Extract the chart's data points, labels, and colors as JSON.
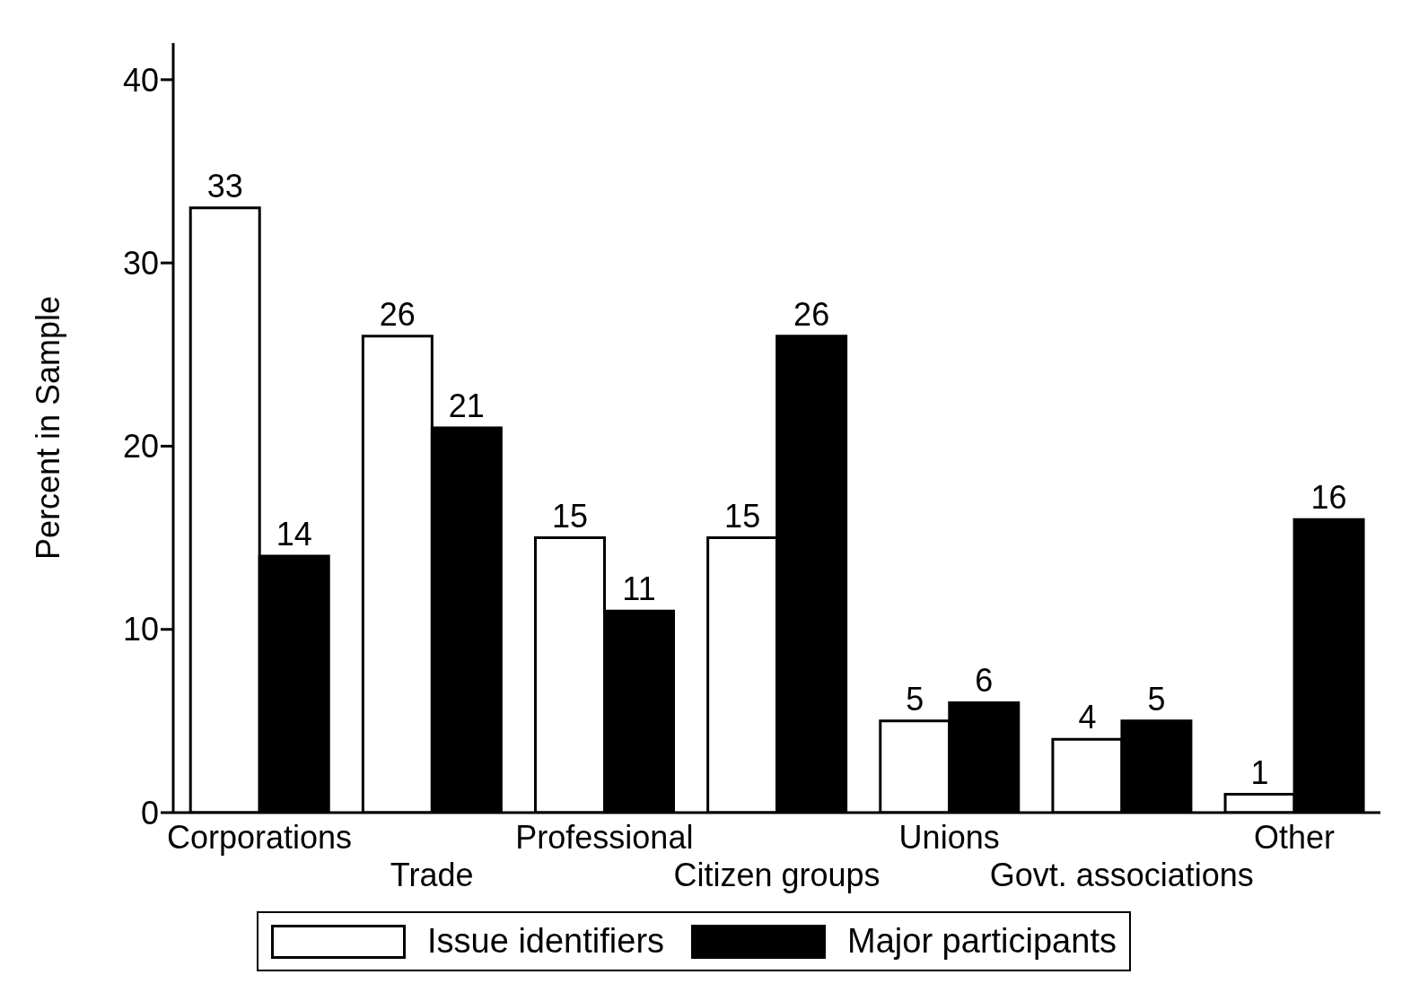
{
  "chart_data": {
    "type": "bar",
    "ylabel": "Percent in Sample",
    "categories": [
      "Corporations",
      "Trade",
      "Professional",
      "Citizen groups",
      "Unions",
      "Govt. associations",
      "Other"
    ],
    "series": [
      {
        "name": "Issue identifiers",
        "color": "#ffffff",
        "values": [
          33,
          26,
          15,
          15,
          5,
          4,
          1
        ]
      },
      {
        "name": "Major participants",
        "color": "#000000",
        "values": [
          14,
          21,
          11,
          26,
          6,
          5,
          16
        ]
      }
    ],
    "ylim": [
      0,
      42
    ],
    "yticks": [
      0,
      10,
      20,
      30,
      40
    ],
    "grid": false,
    "legend": "bottom",
    "data_labels": true
  }
}
